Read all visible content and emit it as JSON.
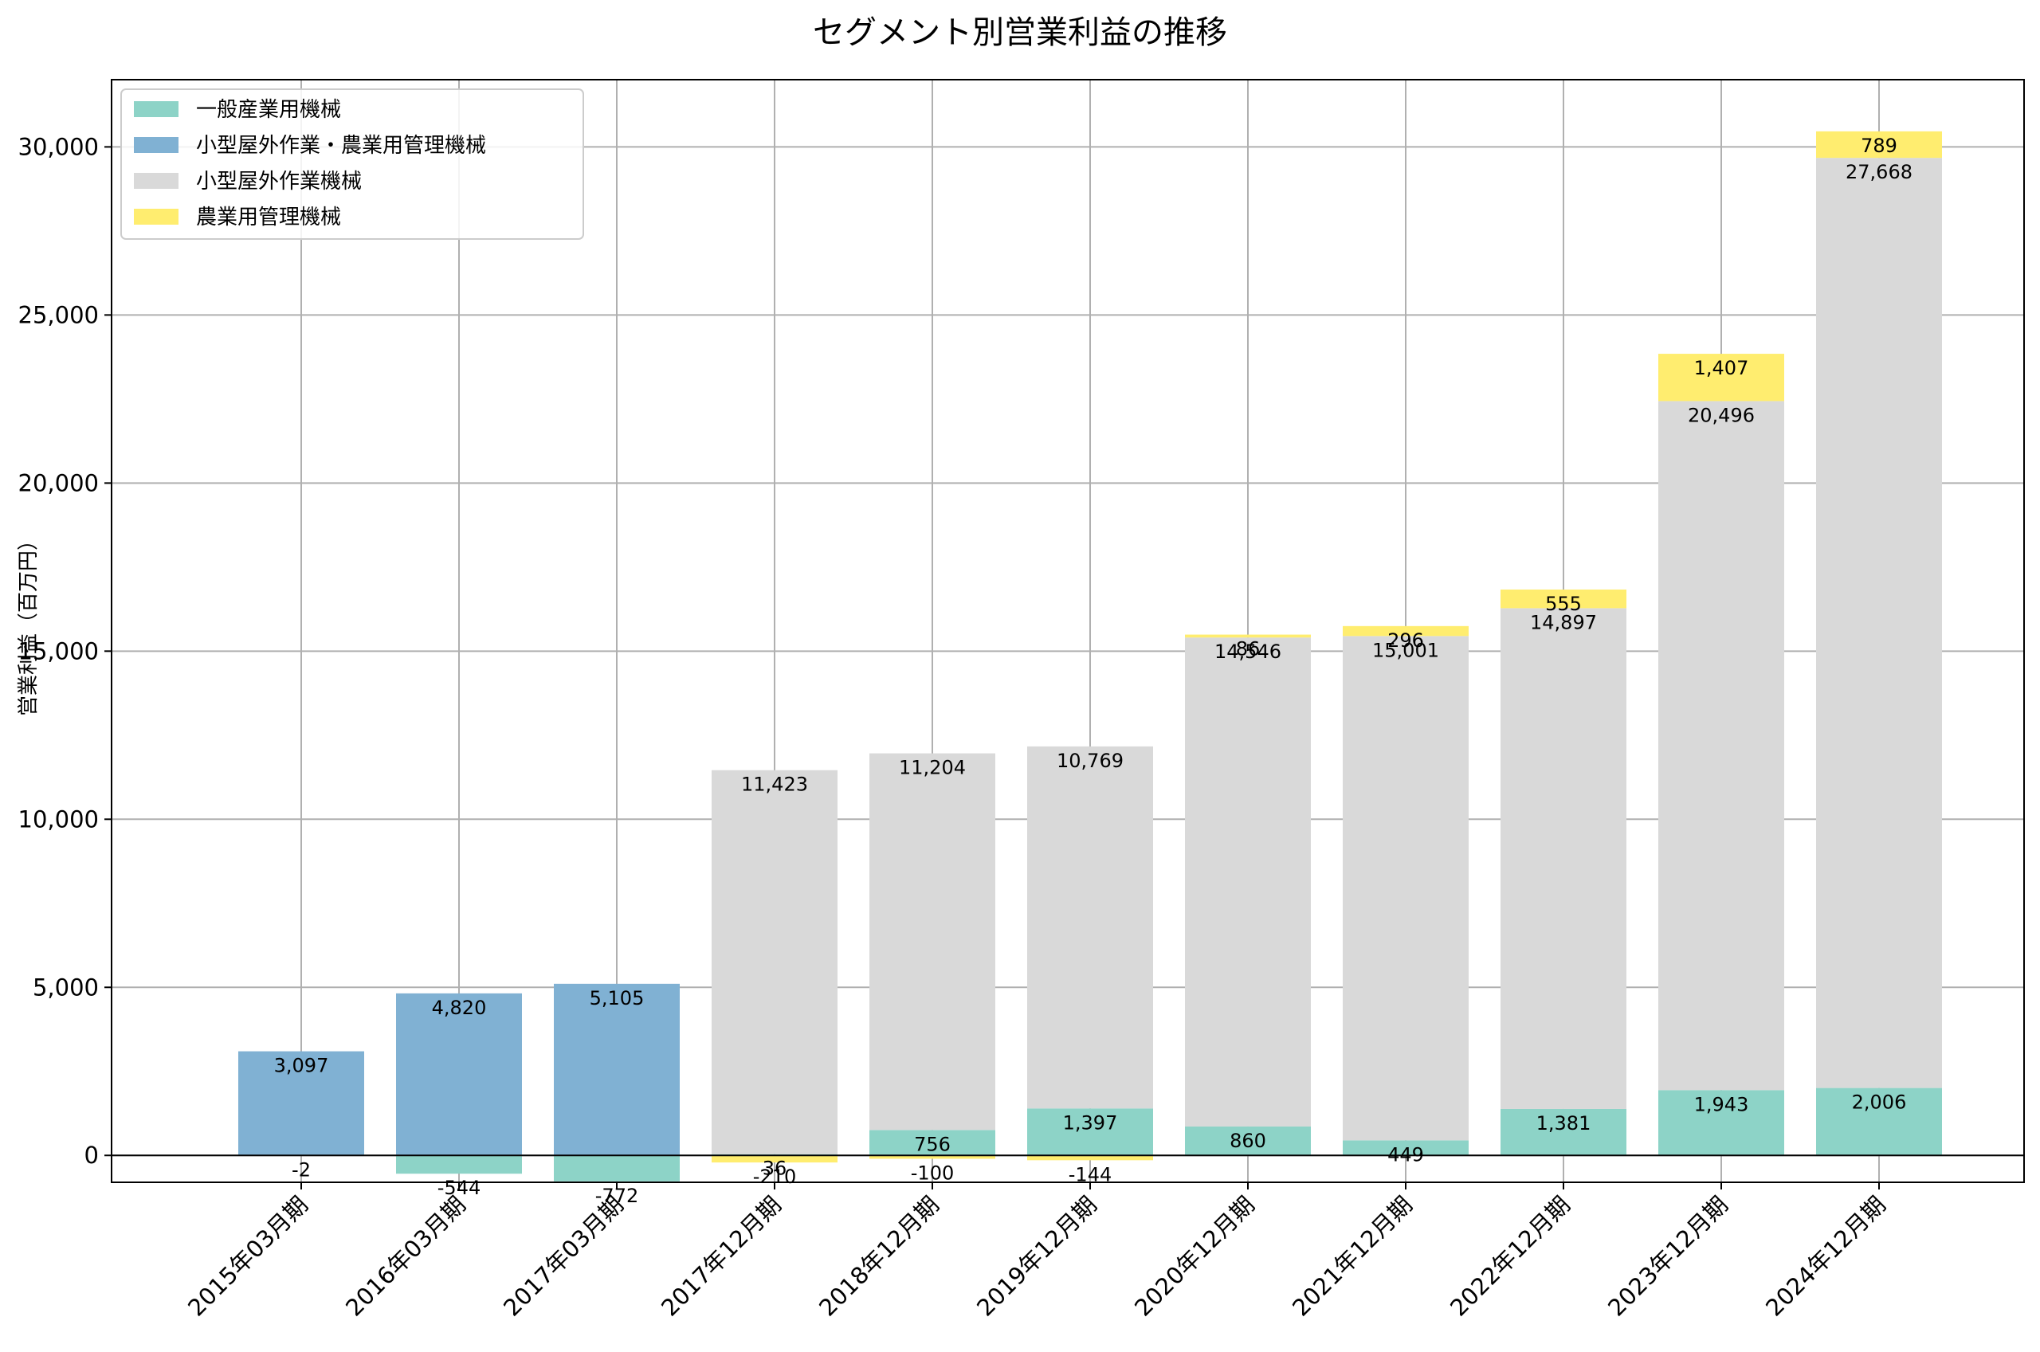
{
  "chart_data": {
    "type": "bar",
    "stacked": true,
    "title": "セグメント別営業利益の推移",
    "xlabel": "",
    "ylabel": "営業利益（百万円）",
    "ylim": [
      -800,
      32000
    ],
    "yticks": [
      0,
      5000,
      10000,
      15000,
      20000,
      25000,
      30000
    ],
    "ytick_labels": [
      "0",
      "5,000",
      "10,000",
      "15,000",
      "20,000",
      "25,000",
      "30,000"
    ],
    "grid": true,
    "legend_position": "top-left",
    "categories": [
      "2015年03月期",
      "2016年03月期",
      "2017年03月期",
      "2017年12月期",
      "2018年12月期",
      "2019年12月期",
      "2020年12月期",
      "2021年12月期",
      "2022年12月期",
      "2023年12月期",
      "2024年12月期"
    ],
    "series": [
      {
        "name": "一般産業用機械",
        "color": "#8dd3c7",
        "values": [
          -2,
          -544,
          -772,
          36,
          756,
          1397,
          860,
          449,
          1381,
          1943,
          2006
        ],
        "labels": [
          "-2",
          "-544",
          "-772",
          "36",
          "756",
          "1,397",
          "860",
          "449",
          "1,381",
          "1,943",
          "2,006"
        ]
      },
      {
        "name": "小型屋外作業・農業用管理機械",
        "color": "#80b1d3",
        "values": [
          3097,
          4820,
          5105,
          null,
          null,
          null,
          null,
          null,
          null,
          null,
          null
        ],
        "labels": [
          "3,097",
          "4,820",
          "5,105",
          "",
          "",
          "",
          "",
          "",
          "",
          "",
          ""
        ]
      },
      {
        "name": "小型屋外作業機械",
        "color": "#d9d9d9",
        "values": [
          null,
          null,
          null,
          11423,
          11204,
          10769,
          14546,
          15001,
          14897,
          20496,
          27668
        ],
        "labels": [
          "",
          "",
          "",
          "11,423",
          "11,204",
          "10,769",
          "14,546",
          "15,001",
          "14,897",
          "20,496",
          "27,668"
        ]
      },
      {
        "name": "農業用管理機械",
        "color": "#ffed6f",
        "values": [
          null,
          null,
          null,
          -210,
          -100,
          -144,
          86,
          296,
          555,
          1407,
          789
        ],
        "labels": [
          "",
          "",
          "",
          "-210",
          "-100",
          "-144",
          "86",
          "296",
          "555",
          "1,407",
          "789"
        ]
      }
    ]
  }
}
